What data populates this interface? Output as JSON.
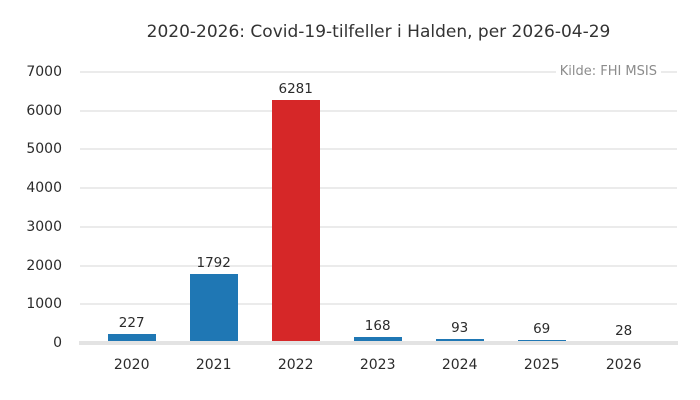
{
  "title": "2020-2026: Covid-19-tilfeller i Halden, per 2026-04-29",
  "source_label": "Kilde: FHI MSIS",
  "colors": {
    "bar_default": "#1f77b4",
    "bar_highlight": "#d62728",
    "gridline": "#ebebeb",
    "baseline": "#e3e3e3",
    "title_text": "#333333",
    "tick_text": "#2b2b2b",
    "source_text": "#8c8c8c",
    "background": "#ffffff"
  },
  "chart_data": {
    "type": "bar",
    "title": "2020-2026: Covid-19-tilfeller i Halden, per 2026-04-29",
    "annotation": "Kilde: FHI MSIS",
    "categories": [
      "2020",
      "2021",
      "2022",
      "2023",
      "2024",
      "2025",
      "2026"
    ],
    "values": [
      227,
      1792,
      6281,
      168,
      93,
      69,
      28
    ],
    "bar_colors": [
      "#1f77b4",
      "#1f77b4",
      "#d62728",
      "#1f77b4",
      "#1f77b4",
      "#1f77b4",
      "#1f77b4"
    ],
    "highlight_category": "2022",
    "value_labels_shown": true,
    "xlabel": "",
    "ylabel": "",
    "ylim": [
      0,
      7000
    ],
    "yticks": [
      0,
      1000,
      2000,
      3000,
      4000,
      5000,
      6000,
      7000
    ],
    "grid": "horizontal",
    "legend": "none"
  }
}
